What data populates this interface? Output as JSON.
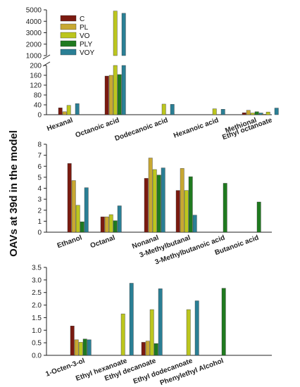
{
  "ylabel": "OAVs at 39d in the model",
  "legend": [
    {
      "name": "C",
      "color": "#7b1a10"
    },
    {
      "name": "PL",
      "color": "#c8a832"
    },
    {
      "name": "VO",
      "color": "#bcc61e"
    },
    {
      "name": "PLY",
      "color": "#1f7a1f"
    },
    {
      "name": "VOY",
      "color": "#2a7f95"
    }
  ],
  "chart_data": [
    {
      "type": "bar",
      "panel": "top",
      "categories": [
        "Hexanal",
        "Octanoic acid",
        "Dodecanoic acid",
        "Hexanoic acid",
        "Methional",
        "Ethyl octanoate"
      ],
      "series": [
        {
          "name": "C",
          "values": [
            28,
            157,
            0,
            0,
            8,
            0
          ]
        },
        {
          "name": "PL",
          "values": [
            12,
            160,
            0,
            0,
            18,
            2
          ]
        },
        {
          "name": "VO",
          "values": [
            38,
            4900,
            43,
            24,
            7,
            11
          ]
        },
        {
          "name": "PLY",
          "values": [
            0,
            163,
            0,
            0,
            12,
            0
          ]
        },
        {
          "name": "VOY",
          "values": [
            45,
            4700,
            42,
            22,
            7,
            27
          ]
        }
      ],
      "axis_break": [
        200,
        1000
      ],
      "lower_ticks": [
        0,
        40,
        80,
        120,
        160,
        200
      ],
      "upper_ticks": [
        1000,
        2000,
        3000,
        4000,
        5000
      ],
      "ylim": [
        0,
        5000
      ]
    },
    {
      "type": "bar",
      "panel": "middle",
      "categories": [
        "Ethanol",
        "Octanal",
        "Nonanal",
        "3-Methylbutanal",
        "3-Methylbutanoic acid",
        "Butanoic acid"
      ],
      "series": [
        {
          "name": "C",
          "values": [
            6.25,
            1.4,
            4.9,
            3.8,
            0,
            0
          ]
        },
        {
          "name": "PL",
          "values": [
            4.7,
            1.4,
            6.75,
            5.8,
            0,
            0
          ]
        },
        {
          "name": "VO",
          "values": [
            2.45,
            1.6,
            5.7,
            3.8,
            0,
            0
          ]
        },
        {
          "name": "PLY",
          "values": [
            0.95,
            1.05,
            5.2,
            5.05,
            4.45,
            2.75
          ]
        },
        {
          "name": "VOY",
          "values": [
            4.05,
            2.4,
            5.85,
            1.55,
            0,
            0
          ]
        }
      ],
      "yticks": [
        0,
        1,
        2,
        3,
        4,
        5,
        6,
        7,
        8
      ],
      "ylim": [
        0,
        8
      ]
    },
    {
      "type": "bar",
      "panel": "bottom",
      "categories": [
        "1-Octen-3-ol",
        "Ethyl hexanoate",
        "Ethyl decanoate",
        "Ethyl dodecanoate",
        "Phenylethyl Alcohol"
      ],
      "series": [
        {
          "name": "C",
          "values": [
            1.17,
            0,
            0.52,
            0,
            0
          ]
        },
        {
          "name": "PL",
          "values": [
            0.62,
            0,
            0.57,
            0,
            0
          ]
        },
        {
          "name": "VO",
          "values": [
            0.52,
            1.65,
            1.82,
            1.82,
            0
          ]
        },
        {
          "name": "PLY",
          "values": [
            0.65,
            0,
            0.47,
            0,
            2.67
          ]
        },
        {
          "name": "VOY",
          "values": [
            0.62,
            2.87,
            2.65,
            2.17,
            0
          ]
        }
      ],
      "yticks": [
        "0.0",
        "0.5",
        "1.0",
        "1.5",
        "2.0",
        "2.5",
        "3.0",
        "3.5"
      ],
      "ylim": [
        0,
        3.5
      ]
    }
  ]
}
